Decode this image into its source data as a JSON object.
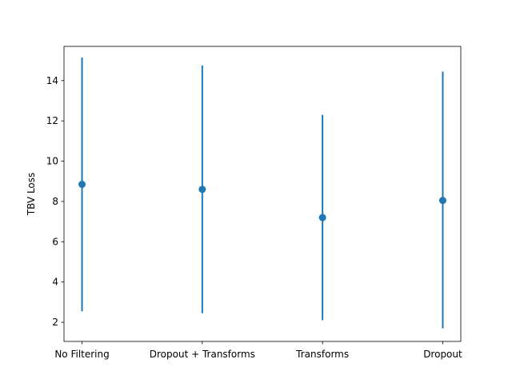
{
  "chart_data": {
    "type": "scatter",
    "title": "",
    "xlabel": "",
    "ylabel": "TBV Loss",
    "categories": [
      "No Filtering",
      "Dropout + Transforms",
      "Transforms",
      "Dropout"
    ],
    "series": [
      {
        "values": [
          8.85,
          8.6,
          7.2,
          8.05
        ],
        "error_low": [
          2.55,
          2.45,
          2.1,
          1.7
        ],
        "error_high": [
          15.15,
          14.75,
          12.3,
          14.45
        ],
        "color": "#1f77b4"
      }
    ],
    "ylim": [
      1.05,
      15.7
    ],
    "yticks": [
      2,
      4,
      6,
      8,
      10,
      12,
      14
    ],
    "grid": false,
    "legend": "none"
  }
}
